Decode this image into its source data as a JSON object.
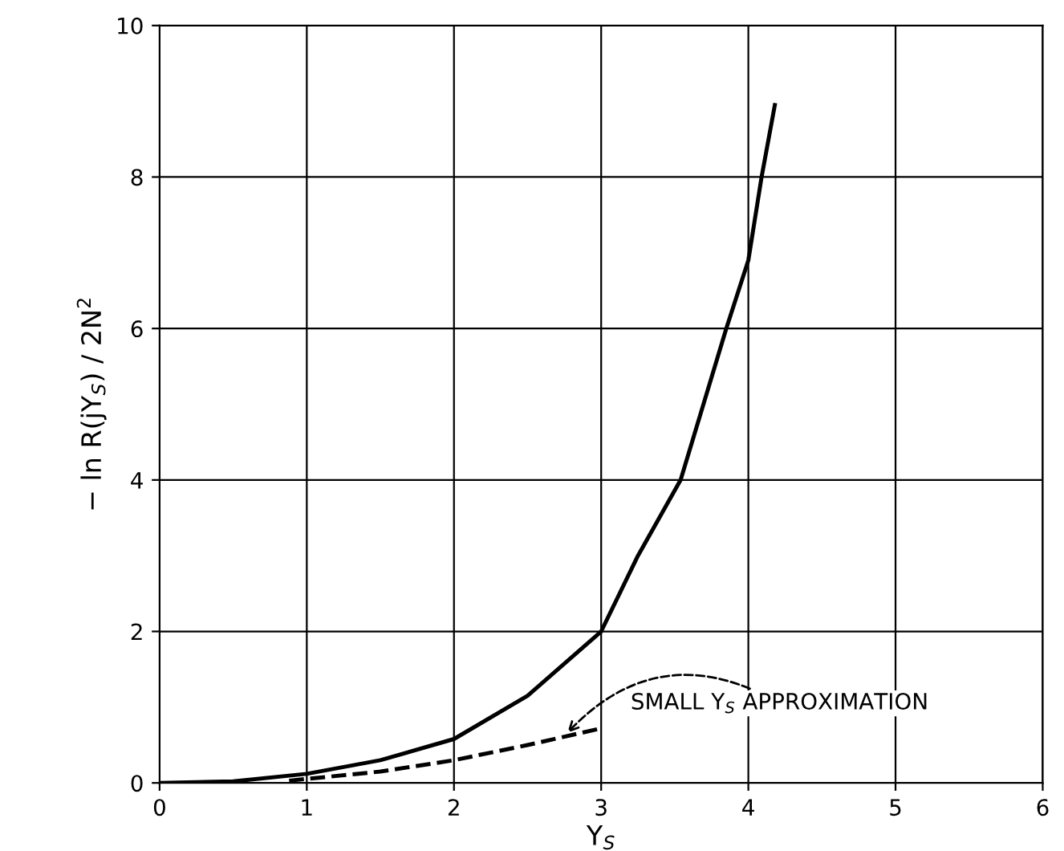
{
  "chart_data": {
    "type": "line",
    "xlabel": "Y$_{S}$",
    "ylabel": "− ln R(jY$_{S}$) / 2N$^{2}$",
    "series": [
      {
        "color": "#000000",
        "line_style": "solid",
        "x": [
          0,
          0.5,
          1,
          1.5,
          2,
          2.5,
          3,
          3.25,
          3.54,
          3.85,
          4,
          4.09,
          4.18
        ],
        "values": [
          0,
          0.02,
          0.12,
          0.3,
          0.58,
          1.15,
          2.0,
          3.0,
          4.0,
          6.0,
          6.9,
          8.0,
          8.95
        ]
      },
      {
        "color": "#000000",
        "line_style": "dashed",
        "x": [
          0.88,
          1.5,
          2,
          2.5,
          3
        ],
        "values": [
          0.03,
          0.15,
          0.3,
          0.5,
          0.72
        ]
      }
    ],
    "annotations": [
      {
        "text": "SMALL Y$_{S}$ APPROXIMATION",
        "x": 2.75,
        "y": 0.62
      }
    ],
    "xlim": [
      0,
      6
    ],
    "ylim": [
      0,
      10
    ],
    "xticks": [
      0,
      1,
      2,
      3,
      4,
      5,
      6
    ],
    "yticks": [
      0,
      2,
      4,
      6,
      8,
      10
    ],
    "grid": true,
    "marker": "none"
  }
}
